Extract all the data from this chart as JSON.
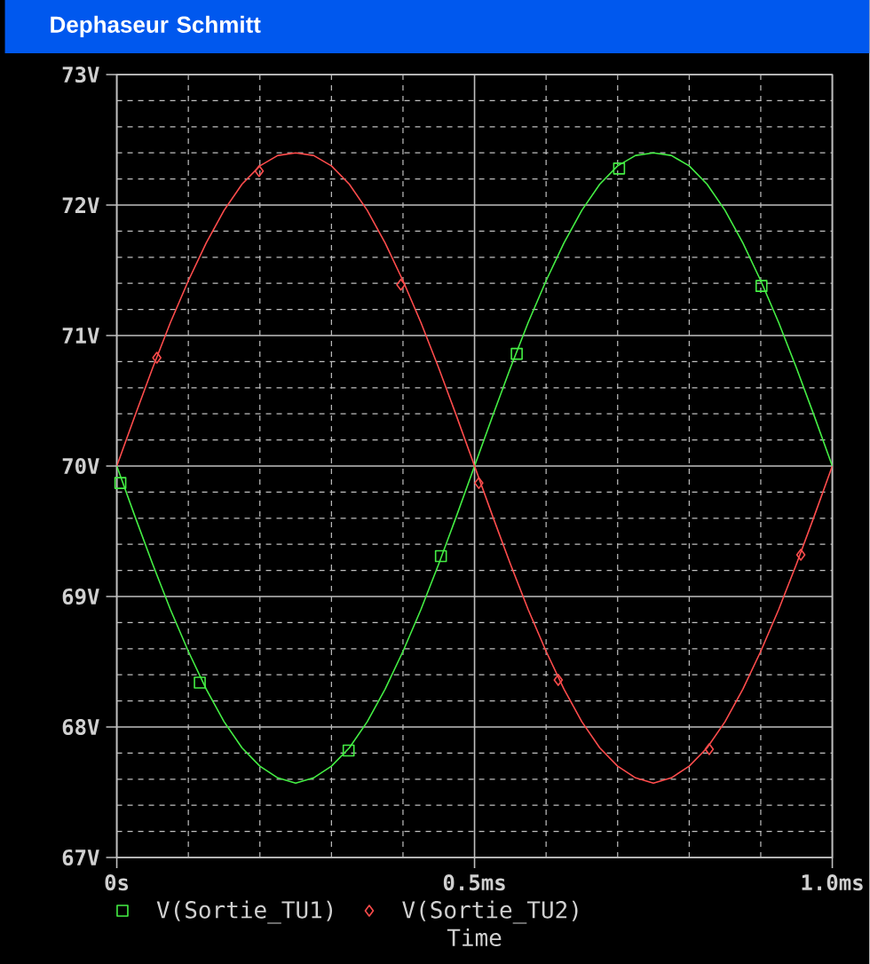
{
  "chart_data": {
    "type": "line",
    "title": "Dephaseur Schmitt",
    "xlabel": "Time",
    "x": [
      0,
      0.025,
      0.05,
      0.075,
      0.1,
      0.125,
      0.15,
      0.175,
      0.2,
      0.225,
      0.25,
      0.275,
      0.3,
      0.325,
      0.35,
      0.375,
      0.4,
      0.425,
      0.45,
      0.475,
      0.5,
      0.525,
      0.55,
      0.575,
      0.6,
      0.625,
      0.65,
      0.675,
      0.7,
      0.725,
      0.75,
      0.775,
      0.8,
      0.825,
      0.85,
      0.875,
      0.9,
      0.925,
      0.95,
      0.975,
      1.0
    ],
    "series": [
      {
        "color": "#44ee44",
        "values": [
          70.0,
          69.62,
          69.25,
          68.9,
          68.58,
          68.29,
          68.04,
          67.84,
          67.7,
          67.61,
          67.57,
          67.61,
          67.7,
          67.84,
          68.04,
          68.29,
          68.58,
          68.9,
          69.25,
          69.62,
          70.0,
          70.38,
          70.75,
          71.1,
          71.42,
          71.71,
          71.96,
          72.16,
          72.3,
          72.38,
          72.4,
          72.38,
          72.3,
          72.16,
          71.96,
          71.71,
          71.42,
          71.1,
          70.75,
          70.38,
          70.0
        ]
      },
      {
        "type": "scatter",
        "name": "V(Sortie_TU1)",
        "color": "#44ee44",
        "marker": "square",
        "x": [
          0.005,
          0.116,
          0.324,
          0.453,
          0.559,
          0.702,
          0.901
        ],
        "values": [
          69.87,
          68.34,
          67.82,
          69.31,
          70.86,
          72.28,
          71.38
        ]
      },
      {
        "color": "#ff4c4c",
        "values": [
          70.0,
          70.38,
          70.75,
          71.1,
          71.42,
          71.71,
          71.96,
          72.16,
          72.3,
          72.38,
          72.4,
          72.38,
          72.3,
          72.16,
          71.96,
          71.71,
          71.42,
          71.1,
          70.75,
          70.38,
          70.0,
          69.62,
          69.25,
          68.9,
          68.58,
          68.29,
          68.04,
          67.84,
          67.7,
          67.61,
          67.57,
          67.61,
          67.7,
          67.84,
          68.04,
          68.29,
          68.58,
          68.9,
          69.25,
          69.62,
          70.0
        ]
      },
      {
        "type": "scatter",
        "name": "V(Sortie_TU2)",
        "color": "#ff4c4c",
        "marker": "diamond",
        "x": [
          0.056,
          0.199,
          0.397,
          0.506,
          0.617,
          0.828,
          0.956
        ],
        "values": [
          70.83,
          72.26,
          71.39,
          69.87,
          68.36,
          67.83,
          69.32
        ]
      }
    ],
    "xlim": [
      0,
      1.0
    ],
    "ylim": [
      67,
      73
    ],
    "xticks": [
      {
        "value": 0,
        "label": "0s"
      },
      {
        "value": 0.5,
        "label": "0.5ms"
      },
      {
        "value": 1.0,
        "label": "1.0ms"
      }
    ],
    "yticks": [
      {
        "value": 67,
        "label": "67V"
      },
      {
        "value": 68,
        "label": "68V"
      },
      {
        "value": 69,
        "label": "69V"
      },
      {
        "value": 70,
        "label": "70V"
      },
      {
        "value": 71,
        "label": "71V"
      },
      {
        "value": 72,
        "label": "72V"
      },
      {
        "value": 73,
        "label": "73V"
      }
    ],
    "grid": true,
    "legend": "bottom",
    "line_style": "solid"
  }
}
